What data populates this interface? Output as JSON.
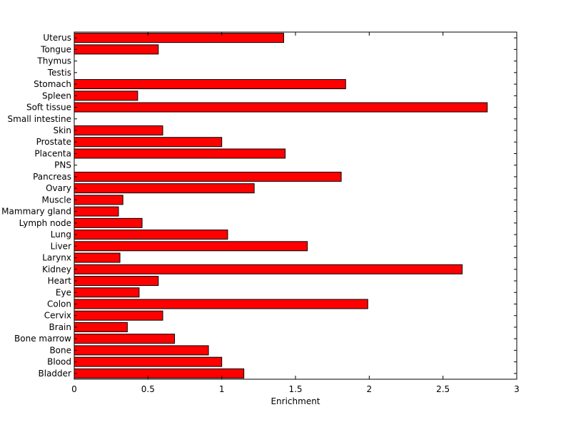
{
  "chart_data": {
    "type": "bar",
    "orientation": "horizontal",
    "title": "",
    "xlabel": "Enrichment",
    "ylabel": "",
    "xlim": [
      0,
      3
    ],
    "x_ticks": [
      "0",
      "0.5",
      "1",
      "1.5",
      "2",
      "2.5",
      "3"
    ],
    "grid": false,
    "legend": "none",
    "bar_color": "#ff0000",
    "bar_edge_color": "#000000",
    "categories": [
      "Bladder",
      "Blood",
      "Bone",
      "Bone marrow",
      "Brain",
      "Cervix",
      "Colon",
      "Eye",
      "Heart",
      "Kidney",
      "Larynx",
      "Liver",
      "Lung",
      "Lymph node",
      "Mammary gland",
      "Muscle",
      "Ovary",
      "Pancreas",
      "PNS",
      "Placenta",
      "Prostate",
      "Skin",
      "Small intestine",
      "Soft tissue",
      "Spleen",
      "Stomach",
      "Testis",
      "Thymus",
      "Tongue",
      "Uterus"
    ],
    "values": [
      1.15,
      1.0,
      0.91,
      0.68,
      0.36,
      0.6,
      1.99,
      0.44,
      0.57,
      2.63,
      0.31,
      1.58,
      1.04,
      0.46,
      0.3,
      0.33,
      1.22,
      1.81,
      0,
      1.43,
      1.0,
      0.6,
      0,
      2.8,
      0.43,
      1.84,
      0,
      0,
      0.57,
      1.42
    ]
  }
}
